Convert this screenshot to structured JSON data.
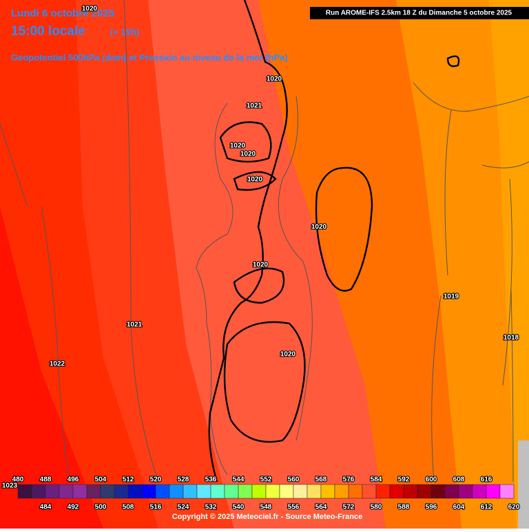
{
  "header": {
    "date": "Lundi 6 octobre 2025",
    "time": "15:00 locale",
    "lead": "(+ 19h)",
    "subtitle": "Geopotentiel 500hPa (dam) et Pression au niveau de la mer (hPa)",
    "run": "Run AROME-IFS 2.5km 18 Z du Dimanche 5 octobre 2025"
  },
  "isobars": [
    "1020",
    "1020",
    "1021",
    "1020",
    "1020",
    "1020",
    "1020",
    "1020",
    "1019",
    "1018",
    "1021",
    "1022",
    "1020",
    "1023"
  ],
  "legend": {
    "values": [
      480,
      484,
      488,
      492,
      496,
      500,
      504,
      508,
      512,
      516,
      520,
      524,
      528,
      532,
      536,
      540,
      544,
      548,
      552,
      556,
      560,
      564,
      568,
      572,
      576,
      580,
      584,
      588,
      592,
      596,
      600,
      604,
      608,
      612,
      616,
      620
    ],
    "colors": [
      "#3c1040",
      "#4c1860",
      "#6a2080",
      "#802890",
      "#902fa0",
      "#6a2060",
      "#303a70",
      "#1a2a90",
      "#0010c0",
      "#0000ff",
      "#0050ff",
      "#1090ff",
      "#30c0ff",
      "#60e8ff",
      "#60ffd0",
      "#60ff90",
      "#80ff50",
      "#c0ff00",
      "#f0ff40",
      "#ffff80",
      "#fff0a0",
      "#ffe060",
      "#ffc000",
      "#ffa000",
      "#ff7000",
      "#ff5030",
      "#ff2000",
      "#e00000",
      "#c00000",
      "#a00000",
      "#700010",
      "#800050",
      "#a00080",
      "#d000c0",
      "#ff00ff",
      "#ff80ff"
    ]
  },
  "footer": {
    "copyright": "Copyright © 2025 Meteociel.fr - Source Meteo-France"
  }
}
